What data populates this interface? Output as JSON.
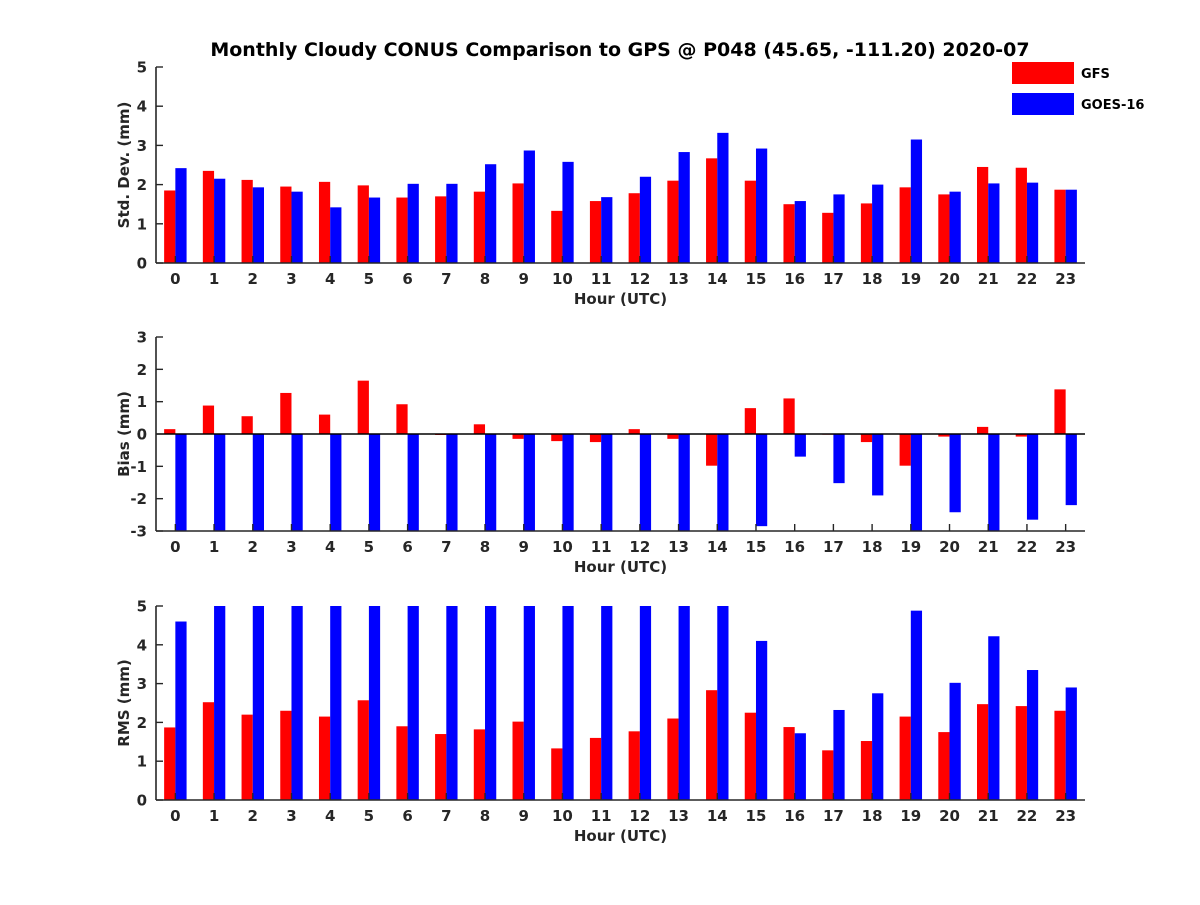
{
  "chart_data": [
    {
      "type": "bar",
      "title": "Monthly Cloudy CONUS Comparison to GPS @ P048 (45.65, -111.20) 2020-07",
      "xlabel": "Hour (UTC)",
      "ylabel": "Std. Dev. (mm)",
      "ylim": [
        0,
        5
      ],
      "yticks": [
        "0",
        "1",
        "2",
        "3",
        "4",
        "5"
      ],
      "categories": [
        "0",
        "1",
        "2",
        "3",
        "4",
        "5",
        "6",
        "7",
        "8",
        "9",
        "10",
        "11",
        "12",
        "13",
        "14",
        "15",
        "16",
        "17",
        "18",
        "19",
        "20",
        "21",
        "22",
        "23"
      ],
      "legend": "top-right",
      "series": [
        {
          "name": "GFS",
          "color": "#ff0000",
          "values": [
            1.85,
            2.35,
            2.12,
            1.95,
            2.07,
            1.98,
            1.67,
            1.7,
            1.82,
            2.03,
            1.33,
            1.58,
            1.78,
            2.1,
            2.67,
            2.1,
            1.5,
            1.28,
            1.52,
            1.93,
            1.75,
            2.45,
            2.43,
            1.87
          ]
        },
        {
          "name": "GOES-16",
          "color": "#0000ff",
          "values": [
            2.42,
            2.15,
            1.93,
            1.82,
            1.42,
            1.67,
            2.02,
            2.02,
            2.52,
            2.87,
            2.58,
            1.68,
            2.2,
            2.83,
            3.32,
            2.92,
            1.58,
            1.75,
            2.0,
            3.15,
            1.82,
            2.03,
            2.05,
            1.87
          ]
        }
      ]
    },
    {
      "type": "bar",
      "xlabel": "Hour (UTC)",
      "ylabel": "Bias (mm)",
      "ylim": [
        -3,
        3
      ],
      "yticks": [
        "-3",
        "-2",
        "-1",
        "0",
        "1",
        "2",
        "3"
      ],
      "categories": [
        "0",
        "1",
        "2",
        "3",
        "4",
        "5",
        "6",
        "7",
        "8",
        "9",
        "10",
        "11",
        "12",
        "13",
        "14",
        "15",
        "16",
        "17",
        "18",
        "19",
        "20",
        "21",
        "22",
        "23"
      ],
      "series": [
        {
          "name": "GFS",
          "color": "#ff0000",
          "values": [
            0.15,
            0.88,
            0.55,
            1.27,
            0.6,
            1.65,
            0.92,
            -0.03,
            0.3,
            -0.15,
            -0.22,
            -0.25,
            0.15,
            -0.15,
            -0.98,
            0.8,
            1.1,
            -0.02,
            -0.25,
            -0.98,
            -0.08,
            0.22,
            -0.08,
            1.38
          ]
        },
        {
          "name": "GOES-16",
          "color": "#0000ff",
          "values": [
            -3.0,
            -3.0,
            -3.0,
            -3.0,
            -3.0,
            -3.0,
            -3.0,
            -3.0,
            -3.0,
            -3.0,
            -3.0,
            -3.0,
            -3.0,
            -3.0,
            -3.0,
            -2.85,
            -0.7,
            -1.52,
            -1.9,
            -3.0,
            -2.42,
            -3.0,
            -2.65,
            -2.2
          ]
        }
      ]
    },
    {
      "type": "bar",
      "xlabel": "Hour (UTC)",
      "ylabel": "RMS (mm)",
      "ylim": [
        0,
        5
      ],
      "yticks": [
        "0",
        "1",
        "2",
        "3",
        "4",
        "5"
      ],
      "categories": [
        "0",
        "1",
        "2",
        "3",
        "4",
        "5",
        "6",
        "7",
        "8",
        "9",
        "10",
        "11",
        "12",
        "13",
        "14",
        "15",
        "16",
        "17",
        "18",
        "19",
        "20",
        "21",
        "22",
        "23"
      ],
      "series": [
        {
          "name": "GFS",
          "color": "#ff0000",
          "values": [
            1.87,
            2.52,
            2.2,
            2.3,
            2.15,
            2.57,
            1.9,
            1.7,
            1.82,
            2.02,
            1.33,
            1.6,
            1.77,
            2.1,
            2.83,
            2.25,
            1.88,
            1.28,
            1.52,
            2.15,
            1.75,
            2.47,
            2.42,
            2.3
          ]
        },
        {
          "name": "GOES-16",
          "color": "#0000ff",
          "values": [
            4.6,
            5.0,
            5.0,
            5.0,
            5.0,
            5.0,
            5.0,
            5.0,
            5.0,
            5.0,
            5.0,
            5.0,
            5.0,
            5.0,
            5.0,
            4.1,
            1.72,
            2.32,
            2.75,
            4.88,
            3.02,
            4.22,
            3.35,
            2.9
          ]
        }
      ]
    }
  ]
}
